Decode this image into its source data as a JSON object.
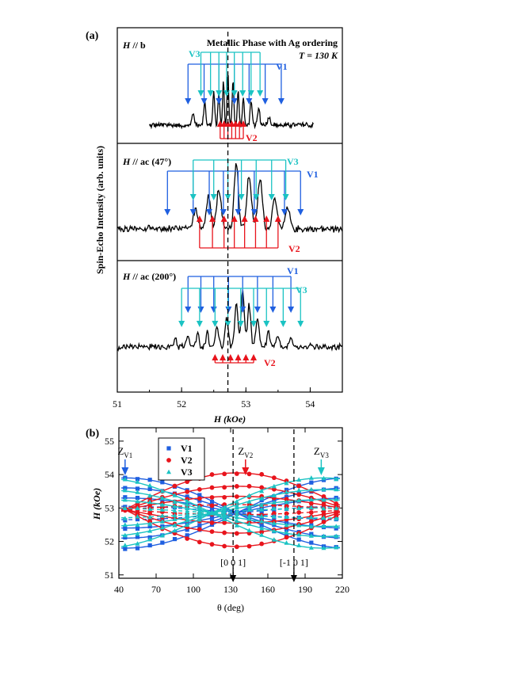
{
  "figure": {
    "panel_a_label": "(a)",
    "panel_b_label": "(b)"
  },
  "colors": {
    "V1": "#1f5fe0",
    "V2": "#e8141c",
    "V3": "#1bc3c3",
    "spectrum": "#000000",
    "dashed": "#000000"
  },
  "chart_data": [
    {
      "type": "line",
      "panel": "a",
      "title": "Metallic Phase with Ag ordering",
      "temperature_label": "T = 130 K",
      "ylabel": "Spin-Echo Intensity (arb. units)",
      "xlabel": "H (kOe)",
      "xlim": [
        51,
        54.5
      ],
      "x_ticks": [
        51,
        52,
        53,
        54
      ],
      "dashed_line_x": 52.72,
      "subpanels": [
        {
          "label": "H // b",
          "spectrum_range": [
            51.5,
            54.05
          ],
          "peaks": [
            {
              "x": 52.18,
              "h": 0.22,
              "w": 0.025
            },
            {
              "x": 52.36,
              "h": 0.45,
              "w": 0.022
            },
            {
              "x": 52.5,
              "h": 0.6,
              "w": 0.02
            },
            {
              "x": 52.58,
              "h": 0.65,
              "w": 0.018
            },
            {
              "x": 52.65,
              "h": 0.78,
              "w": 0.018
            },
            {
              "x": 52.72,
              "h": 0.95,
              "w": 0.018
            },
            {
              "x": 52.8,
              "h": 0.82,
              "w": 0.018
            },
            {
              "x": 52.88,
              "h": 0.62,
              "w": 0.018
            },
            {
              "x": 52.96,
              "h": 0.5,
              "w": 0.02
            },
            {
              "x": 53.08,
              "h": 0.42,
              "w": 0.022
            },
            {
              "x": 53.2,
              "h": 0.3,
              "w": 0.025
            },
            {
              "x": 53.36,
              "h": 0.15,
              "w": 0.03
            }
          ],
          "V1": {
            "label": "V1",
            "direction": "down",
            "lines": [
              52.1,
              52.35,
              52.58,
              52.82,
              53.05,
              53.3,
              53.55
            ]
          },
          "V3": {
            "label": "V3",
            "direction": "down",
            "lines": [
              52.3,
              52.45,
              52.58,
              52.7,
              52.82,
              52.95,
              53.08,
              53.22
            ]
          },
          "V2": {
            "label": "V2",
            "direction": "up",
            "lines": [
              52.6,
              52.66,
              52.72,
              52.78,
              52.84,
              52.9,
              52.96
            ]
          }
        },
        {
          "label": "H // ac (47°)",
          "spectrum_range": [
            51.0,
            54.5
          ],
          "peaks": [
            {
              "x": 52.22,
              "h": 0.28,
              "w": 0.05
            },
            {
              "x": 52.42,
              "h": 0.45,
              "w": 0.05
            },
            {
              "x": 52.58,
              "h": 0.55,
              "w": 0.05
            },
            {
              "x": 52.85,
              "h": 0.95,
              "w": 0.045
            },
            {
              "x": 53.05,
              "h": 0.75,
              "w": 0.05
            },
            {
              "x": 53.22,
              "h": 0.7,
              "w": 0.05
            },
            {
              "x": 53.45,
              "h": 0.45,
              "w": 0.05
            },
            {
              "x": 53.65,
              "h": 0.28,
              "w": 0.05
            }
          ],
          "V3": {
            "label": "V3",
            "direction": "down",
            "lines": [
              52.18,
              52.5,
              52.72,
              52.93,
              53.16,
              53.4,
              53.62
            ]
          },
          "V1": {
            "label": "V1",
            "direction": "down",
            "lines": [
              51.78,
              52.18,
              52.43,
              52.65,
              52.88,
              53.13,
              53.6,
              53.85
            ]
          },
          "V2": {
            "label": "V2",
            "direction": "up",
            "lines": [
              52.28,
              52.48,
              52.66,
              52.82,
              52.98,
              53.15,
              53.32,
              53.5
            ]
          }
        },
        {
          "label": "H // ac (200°)",
          "spectrum_range": [
            51.0,
            54.5
          ],
          "peaks": [
            {
              "x": 51.9,
              "h": 0.15,
              "w": 0.03
            },
            {
              "x": 52.1,
              "h": 0.2,
              "w": 0.03
            },
            {
              "x": 52.25,
              "h": 0.22,
              "w": 0.03
            },
            {
              "x": 52.4,
              "h": 0.25,
              "w": 0.03
            },
            {
              "x": 52.55,
              "h": 0.35,
              "w": 0.035
            },
            {
              "x": 52.7,
              "h": 0.48,
              "w": 0.035
            },
            {
              "x": 52.85,
              "h": 0.75,
              "w": 0.035
            },
            {
              "x": 52.95,
              "h": 0.95,
              "w": 0.035
            },
            {
              "x": 53.05,
              "h": 0.7,
              "w": 0.035
            },
            {
              "x": 53.18,
              "h": 0.45,
              "w": 0.035
            },
            {
              "x": 53.35,
              "h": 0.28,
              "w": 0.03
            },
            {
              "x": 53.5,
              "h": 0.2,
              "w": 0.03
            },
            {
              "x": 53.7,
              "h": 0.15,
              "w": 0.03
            }
          ],
          "V1": {
            "label": "V1",
            "direction": "down",
            "lines": [
              52.1,
              52.3,
              52.5,
              52.73,
              52.95,
              53.18,
              53.42,
              53.7
            ]
          },
          "V3": {
            "label": "V3",
            "direction": "down",
            "lines": [
              52.0,
              52.28,
              52.52,
              52.72,
              52.92,
              53.12,
              53.32,
              53.58,
              53.85
            ]
          },
          "V2": {
            "label": "V2",
            "direction": "up",
            "lines": [
              52.52,
              52.64,
              52.76,
              52.88,
              53.0,
              53.12
            ]
          }
        }
      ]
    },
    {
      "type": "scatter",
      "panel": "b",
      "xlabel": "θ (deg)",
      "ylabel": "H (kOe)",
      "xlim": [
        40,
        220
      ],
      "ylim": [
        50.9,
        55.4
      ],
      "x_ticks": [
        40,
        70,
        100,
        130,
        160,
        190,
        220
      ],
      "y_ticks": [
        51,
        52,
        53,
        54,
        55
      ],
      "legend": [
        "V1",
        "V2",
        "V3"
      ],
      "legend_position": "top-left",
      "dashed_lines_x": [
        132,
        181
      ],
      "markers": [
        {
          "label": "Z",
          "sub": "V1",
          "x": 45,
          "color_key": "V1"
        },
        {
          "label": "Z",
          "sub": "V2",
          "x": 142,
          "color_key": "V2"
        },
        {
          "label": "Z",
          "sub": "V3",
          "x": 203,
          "color_key": "V3"
        }
      ],
      "axis_annotations": [
        {
          "text": "[0 0 1]",
          "x": 132
        },
        {
          "text": "[-1 0 1]",
          "x": 181
        }
      ],
      "series": [
        {
          "name": "V1",
          "center": 52.85,
          "amplitudes": [
            1.05,
            0.75,
            0.45,
            0.2
          ],
          "phase0": 45
        },
        {
          "name": "V2",
          "center": 52.95,
          "amplitudes": [
            1.1,
            0.7,
            0.4,
            0.15
          ],
          "phase0": 135
        },
        {
          "name": "V3",
          "center": 52.85,
          "amplitudes": [
            1.05,
            0.7,
            0.4,
            0.15
          ],
          "phase0": 205
        }
      ],
      "theta_points": [
        45,
        55,
        65,
        75,
        85,
        95,
        105,
        115,
        125,
        135,
        145,
        155,
        165,
        175,
        185,
        195,
        205,
        215
      ]
    }
  ]
}
